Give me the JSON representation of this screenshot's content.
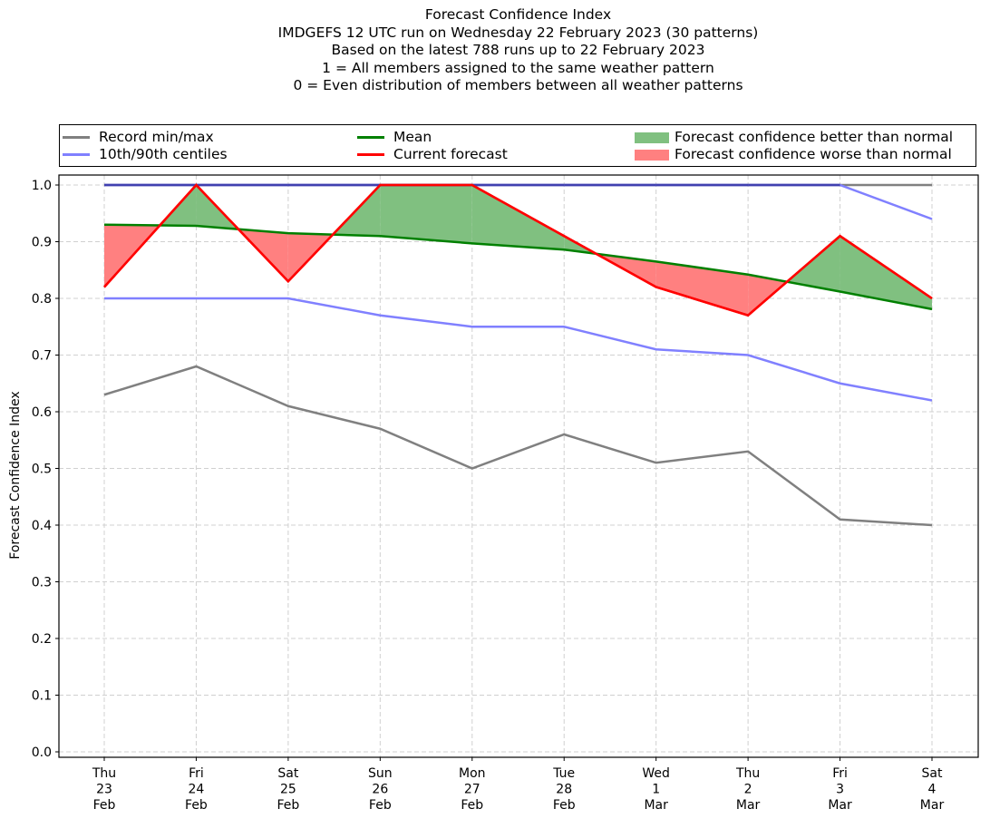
{
  "chart_data": {
    "type": "line",
    "title": "Forecast Confidence Index",
    "subtitle_lines": [
      "IMDGEFS 12 UTC run on Wednesday 22 February 2023 (30 patterns)",
      "Based on the latest 788 runs up to 22 February 2023",
      "1 = All members assigned to the same weather pattern",
      "0 = Even distribution of members between all weather patterns"
    ],
    "xlabel": "",
    "ylabel": "Forecast Confidence Index",
    "ylim": [
      0.0,
      1.0
    ],
    "yticks": [
      "0.0",
      "0.1",
      "0.2",
      "0.3",
      "0.4",
      "0.5",
      "0.6",
      "0.7",
      "0.8",
      "0.9",
      "1.0"
    ],
    "grid": true,
    "legend_placement": "top, above plot",
    "categories": [
      [
        "Thu",
        "23",
        "Feb"
      ],
      [
        "Fri",
        "24",
        "Feb"
      ],
      [
        "Sat",
        "25",
        "Feb"
      ],
      [
        "Sun",
        "26",
        "Feb"
      ],
      [
        "Mon",
        "27",
        "Feb"
      ],
      [
        "Tue",
        "28",
        "Feb"
      ],
      [
        "Wed",
        "1",
        "Mar"
      ],
      [
        "Thu",
        "2",
        "Mar"
      ],
      [
        "Fri",
        "3",
        "Mar"
      ],
      [
        "Sat",
        "4",
        "Mar"
      ]
    ],
    "series": [
      {
        "name": "Record max",
        "legend": "Record min/max",
        "color": "#808080",
        "values": [
          1.0,
          1.0,
          1.0,
          1.0,
          1.0,
          1.0,
          1.0,
          1.0,
          1.0,
          1.0
        ]
      },
      {
        "name": "Record min",
        "legend": "Record min/max",
        "color": "#808080",
        "values": [
          0.63,
          0.68,
          0.61,
          0.57,
          0.5,
          0.56,
          0.51,
          0.53,
          0.41,
          0.4
        ]
      },
      {
        "name": "90th centile",
        "legend": "10th/90th centiles",
        "color": "#8080ff",
        "values": [
          1.0,
          1.0,
          1.0,
          1.0,
          1.0,
          1.0,
          1.0,
          1.0,
          1.0,
          0.94
        ]
      },
      {
        "name": "10th centile",
        "legend": "10th/90th centiles",
        "color": "#8080ff",
        "values": [
          0.8,
          0.8,
          0.8,
          0.77,
          0.75,
          0.75,
          0.71,
          0.7,
          0.65,
          0.62
        ]
      },
      {
        "name": "Mean",
        "legend": "Mean",
        "color": "#008000",
        "values": [
          0.93,
          0.928,
          0.915,
          0.91,
          0.897,
          0.886,
          0.865,
          0.842,
          0.812,
          0.781
        ]
      },
      {
        "name": "Current forecast",
        "legend": "Current forecast",
        "color": "#ff0000",
        "values": [
          0.82,
          1.0,
          0.83,
          1.0,
          1.0,
          0.91,
          0.82,
          0.77,
          0.91,
          0.8
        ]
      }
    ],
    "fills": [
      {
        "name": "Forecast confidence better than normal",
        "color": "#80c080",
        "condition": "current > mean"
      },
      {
        "name": "Forecast confidence worse than normal",
        "color": "#ff8080",
        "condition": "current < mean"
      }
    ]
  },
  "legend": {
    "items": [
      {
        "label": "Record min/max",
        "color": "#808080",
        "kind": "line"
      },
      {
        "label": "10th/90th centiles",
        "color": "#8080ff",
        "kind": "line"
      },
      {
        "label": "Mean",
        "color": "#008000",
        "kind": "line"
      },
      {
        "label": "Current forecast",
        "color": "#ff0000",
        "kind": "line"
      },
      {
        "label": "Forecast confidence better than normal",
        "color": "#80c080",
        "kind": "patch"
      },
      {
        "label": "Forecast confidence worse than normal",
        "color": "#ff8080",
        "kind": "patch"
      }
    ]
  }
}
